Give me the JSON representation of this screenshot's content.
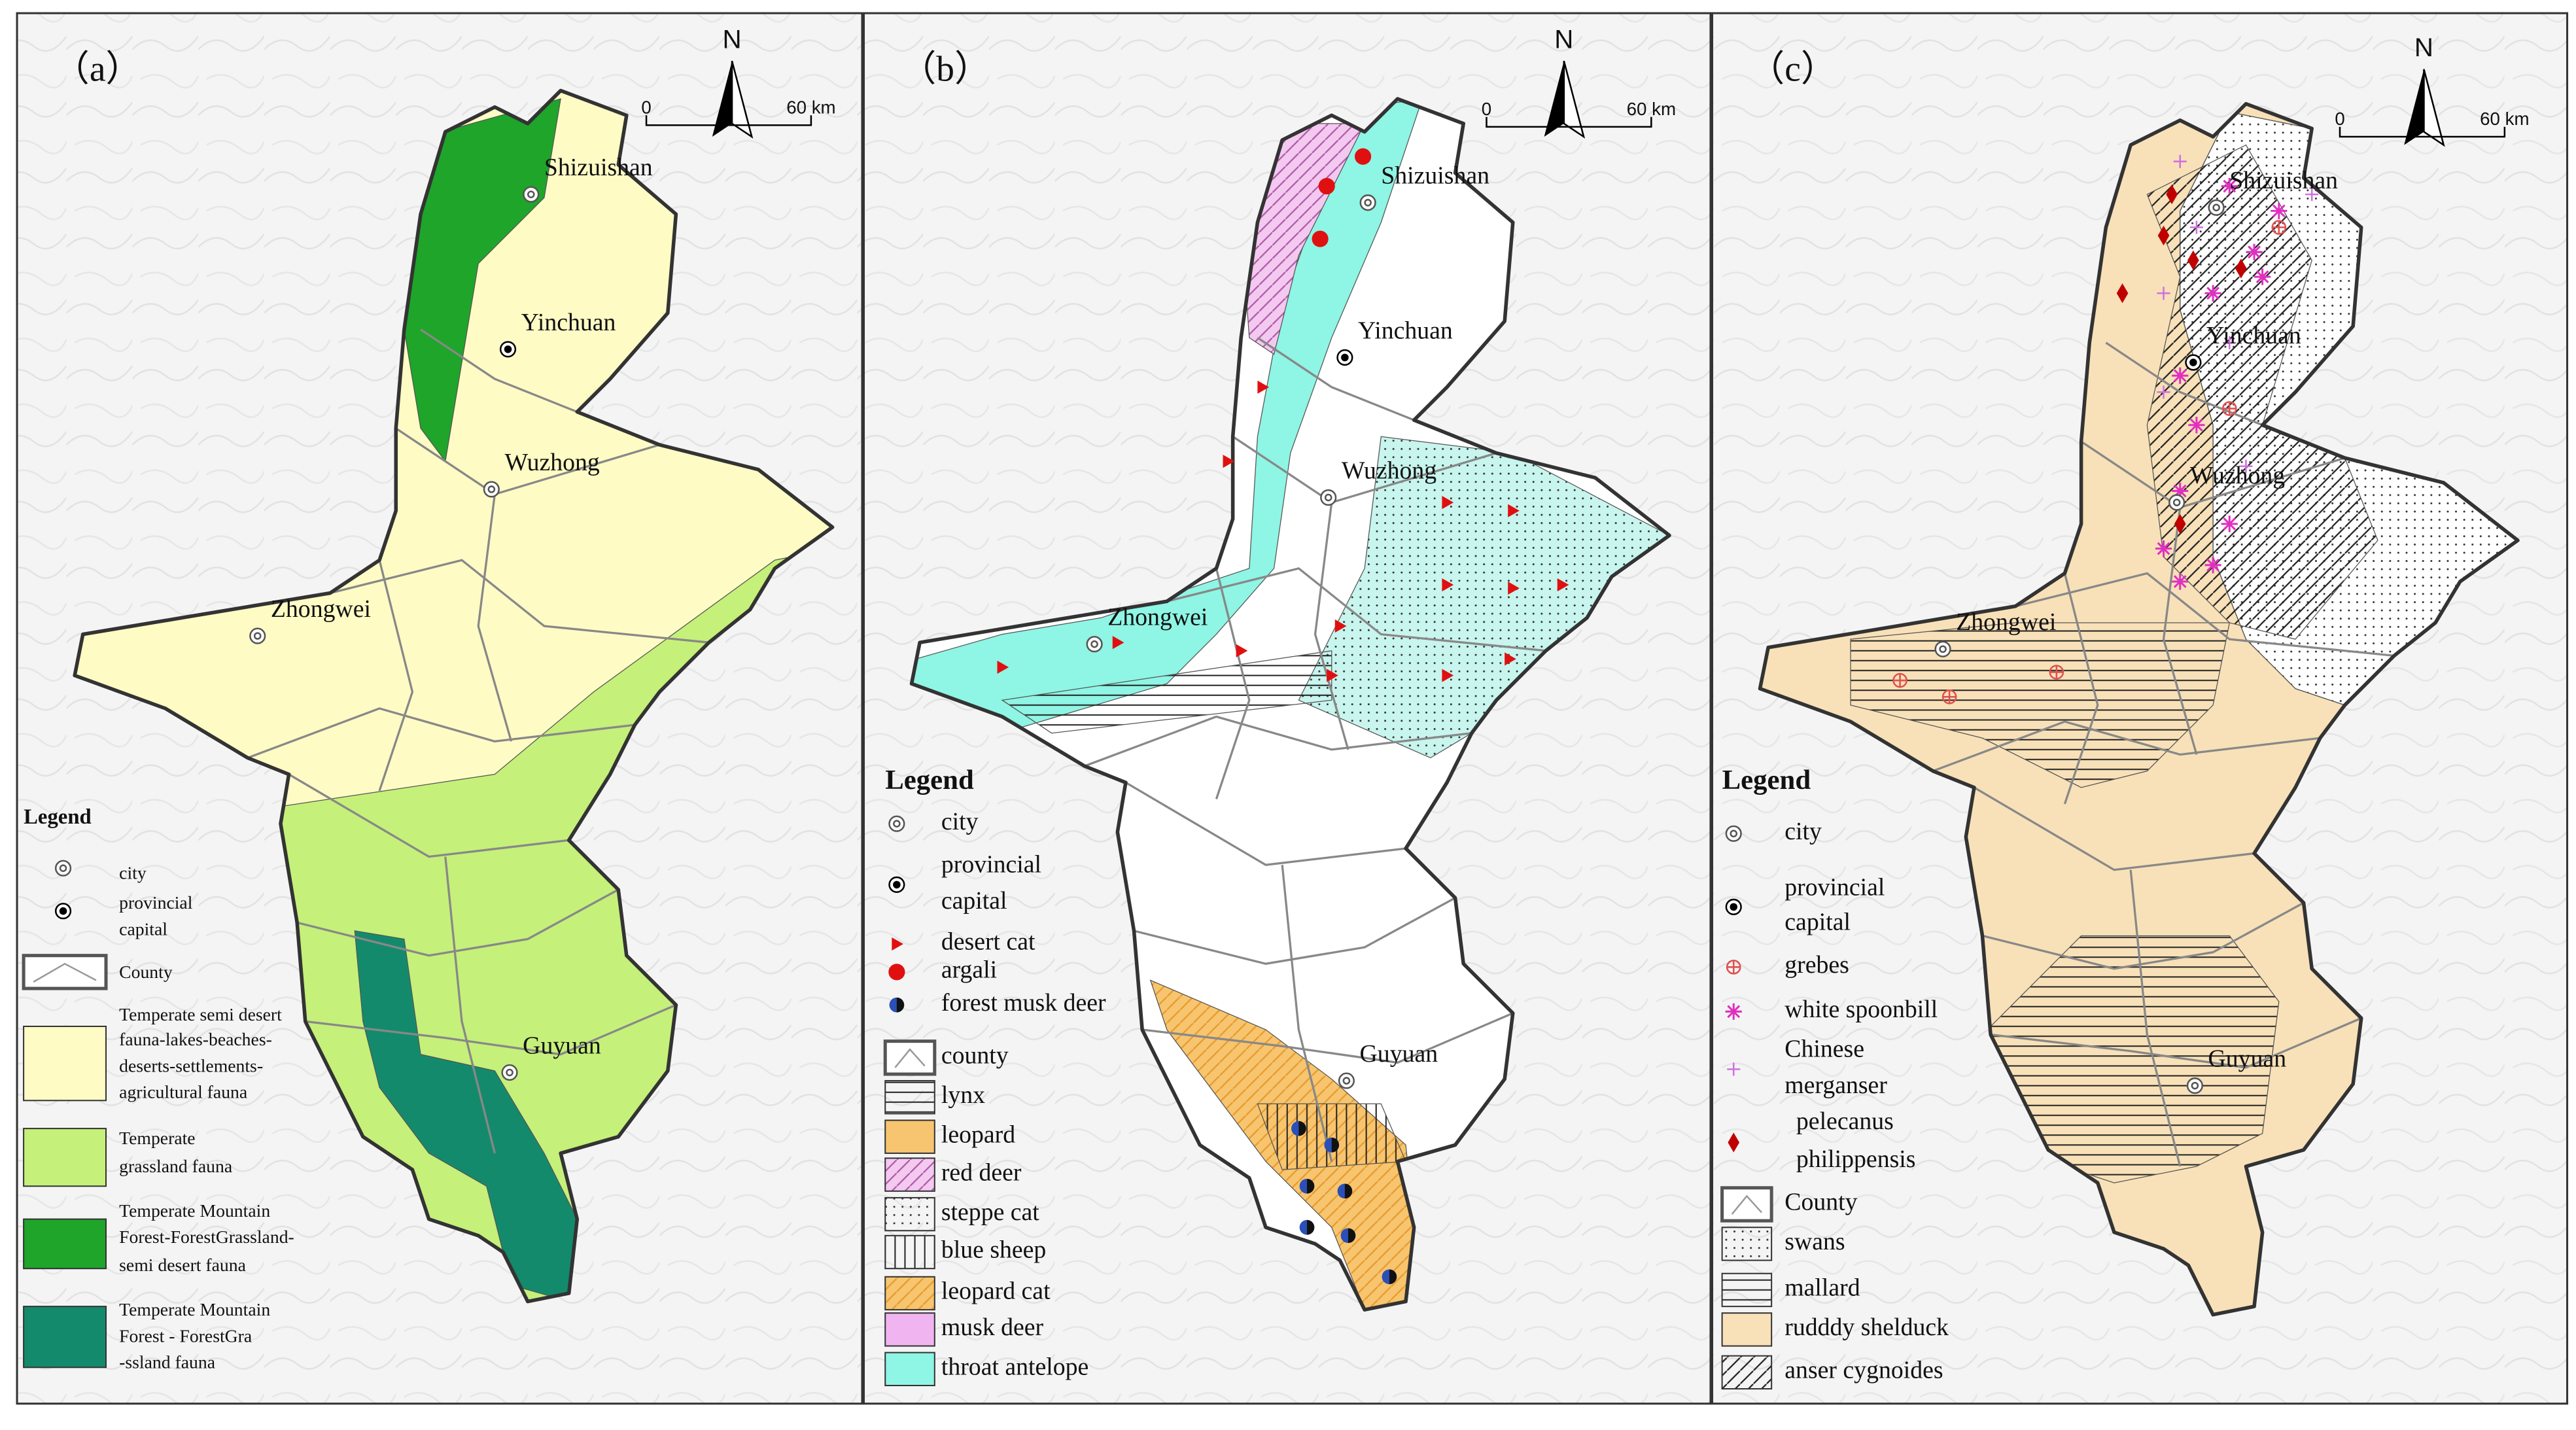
{
  "panels": [
    {
      "label": "（a）",
      "north": "N",
      "scale": [
        "0",
        "60 km"
      ],
      "cities": [
        "Shizuishan",
        "Yinchuan",
        "Wuzhong",
        "Zhongwei",
        "Guyuan"
      ],
      "legend": {
        "title": "Legend",
        "items": [
          [
            "city"
          ],
          [
            "provincial",
            "capital"
          ],
          [
            "County"
          ],
          [
            "Temperate semi desert",
            "fauna-lakes-beaches-",
            "deserts-settlements-",
            "agricultural fauna"
          ],
          [
            "Temperate",
            "grassland fauna"
          ],
          [
            "Temperate Mountain",
            "Forest-ForestGrassland-",
            "semi desert fauna"
          ],
          [
            "Temperate Mountain",
            "Forest - ForestGra",
            "-ssland fauna"
          ]
        ]
      }
    },
    {
      "label": "（b）",
      "north": "N",
      "scale": [
        "0",
        "60 km"
      ],
      "cities": [
        "Shizuishan",
        "Yinchuan",
        "Wuzhong",
        "Zhongwei",
        "Guyuan"
      ],
      "legend": {
        "title": "Legend",
        "items": [
          [
            "city"
          ],
          [
            "provincial",
            "capital"
          ],
          [
            "desert cat"
          ],
          [
            "argali"
          ],
          [
            "forest musk deer"
          ],
          [
            "county"
          ],
          [
            "lynx"
          ],
          [
            "leopard"
          ],
          [
            "red deer"
          ],
          [
            "steppe cat"
          ],
          [
            "blue sheep"
          ],
          [
            "leopard cat"
          ],
          [
            "musk deer"
          ],
          [
            "throat antelope"
          ]
        ]
      }
    },
    {
      "label": "（c）",
      "north": "N",
      "scale": [
        "0",
        "60 km"
      ],
      "cities": [
        "Shizuishan",
        "Yinchuan",
        "Wuzhong",
        "Zhongwei",
        "Guyuan"
      ],
      "legend": {
        "title": "Legend",
        "items": [
          [
            "city"
          ],
          [
            "provincial",
            "capital"
          ],
          [
            "grebes"
          ],
          [
            "white spoonbill"
          ],
          [
            "Chinese",
            "merganser"
          ],
          [
            "pelecanus",
            "philippensis"
          ],
          [
            "County"
          ],
          [
            "swans"
          ],
          [
            "mallard"
          ],
          [
            "rudddy shelduck"
          ],
          [
            "anser cygnoides"
          ]
        ]
      }
    }
  ]
}
